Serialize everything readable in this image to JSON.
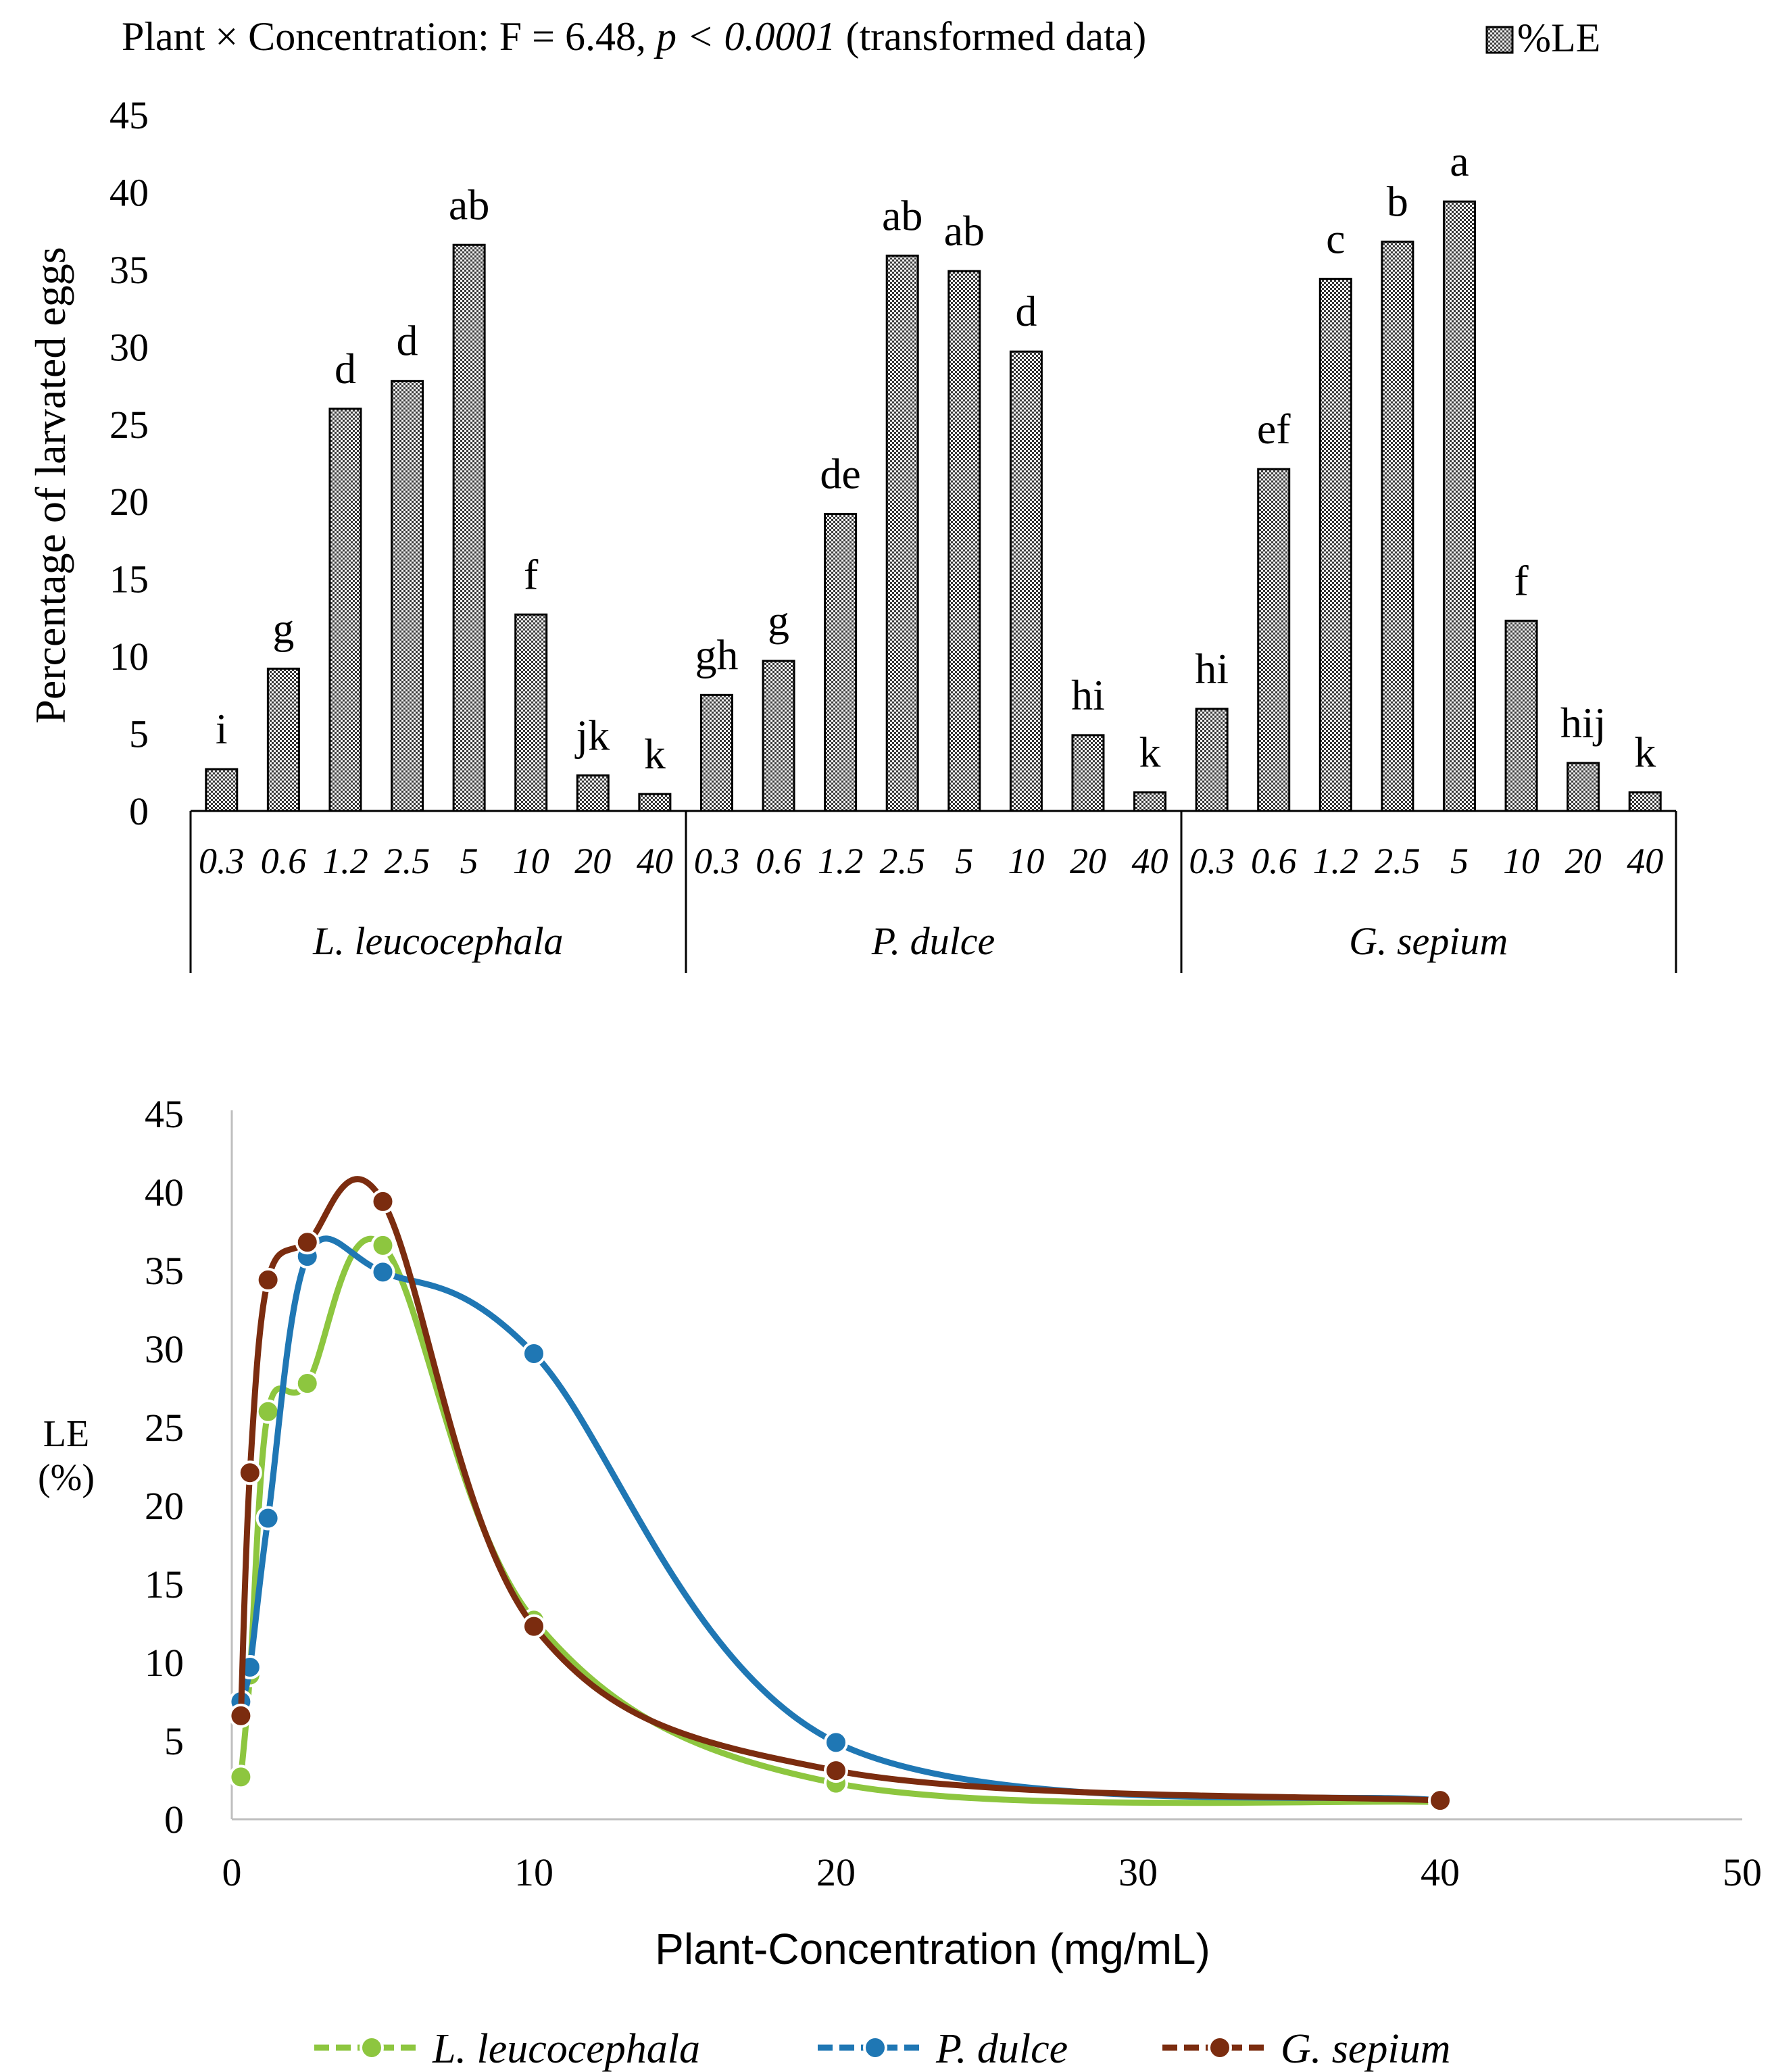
{
  "chart_data": [
    {
      "type": "bar",
      "title_prefix": "Plant × Concentration: F = 6.48, ",
      "title_p": "p < 0.0001",
      "title_suffix": " (transformed data)",
      "legend_label": "%LE",
      "ylabel": "Percentage of larvated eggs",
      "ylim": [
        0,
        45
      ],
      "yticks": [
        "0",
        "5",
        "10",
        "15",
        "20",
        "25",
        "30",
        "35",
        "40",
        "45"
      ],
      "groups": [
        {
          "name": "L. leucocephala",
          "categories": [
            "0.3",
            "0.6",
            "1.2",
            "2.5",
            "5",
            "10",
            "20",
            "40"
          ],
          "values": [
            2.7,
            9.2,
            26.0,
            27.8,
            36.6,
            12.7,
            2.3,
            1.1
          ],
          "letters": [
            "i",
            "g",
            "d",
            "d",
            "ab",
            "f",
            "jk",
            "k"
          ]
        },
        {
          "name": "P. dulce",
          "categories": [
            "0.3",
            "0.6",
            "1.2",
            "2.5",
            "5",
            "10",
            "20",
            "40"
          ],
          "values": [
            7.5,
            9.7,
            19.2,
            35.9,
            34.9,
            29.7,
            4.9,
            1.2
          ],
          "letters": [
            "gh",
            "g",
            "de",
            "ab",
            "ab",
            "d",
            "hi",
            "k"
          ]
        },
        {
          "name": "G. sepium",
          "categories": [
            "0.3",
            "0.6",
            "1.2",
            "2.5",
            "5",
            "10",
            "20",
            "40"
          ],
          "values": [
            6.6,
            22.1,
            34.4,
            36.8,
            39.4,
            12.3,
            3.1,
            1.2
          ],
          "letters": [
            "hi",
            "ef",
            "c",
            "b",
            "a",
            "f",
            "hij",
            "k"
          ]
        }
      ]
    },
    {
      "type": "line",
      "xlabel": "Plant-Concentration (mg/mL)",
      "ylabel_line1": "LE",
      "ylabel_line2": "(%)",
      "xlim": [
        0,
        50
      ],
      "ylim": [
        0,
        45
      ],
      "xticks": [
        "0",
        "10",
        "20",
        "30",
        "40",
        "50"
      ],
      "yticks": [
        "0",
        "5",
        "10",
        "15",
        "20",
        "25",
        "30",
        "35",
        "40",
        "45"
      ],
      "x": [
        0.3,
        0.6,
        1.2,
        2.5,
        5,
        10,
        20,
        40
      ],
      "series": [
        {
          "name": "L. leucocephala",
          "color": "#8dc63f",
          "values": [
            2.7,
            9.2,
            26.0,
            27.8,
            36.6,
            12.7,
            2.3,
            1.1
          ]
        },
        {
          "name": "P. dulce",
          "color": "#1f77b4",
          "values": [
            7.5,
            9.7,
            19.2,
            35.9,
            34.9,
            29.7,
            4.9,
            1.2
          ]
        },
        {
          "name": "G. sepium",
          "color": "#7b2c0f",
          "values": [
            6.6,
            22.1,
            34.4,
            36.8,
            39.4,
            12.3,
            3.1,
            1.2
          ]
        }
      ]
    }
  ]
}
